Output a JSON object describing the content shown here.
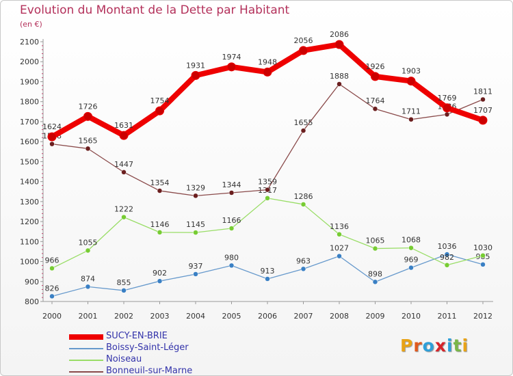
{
  "title": "Evolution du Montant de la Dette par Habitant",
  "unit": "(en €)",
  "logo": {
    "text": "Proxiti",
    "colors": [
      "#e8a317",
      "#e05a1f",
      "#2e9fd8",
      "#d6242a",
      "#2e9fd8",
      "#7ab648",
      "#e8a317"
    ]
  },
  "chart_data": {
    "type": "line",
    "title": "Evolution du Montant de la Dette par Habitant",
    "ylabel": "(en €)",
    "xlabel": "",
    "ylim": [
      800,
      2100
    ],
    "yticks": [
      800,
      900,
      1000,
      1100,
      1200,
      1300,
      1400,
      1500,
      1600,
      1700,
      1800,
      1900,
      2000,
      2100
    ],
    "categories": [
      "2000",
      "2001",
      "2002",
      "2003",
      "2004",
      "2005",
      "2006",
      "2007",
      "2008",
      "2009",
      "2010",
      "2011",
      "2012"
    ],
    "grid": false,
    "legend": "bottom-left",
    "series": [
      {
        "name": "SUCY-EN-BRIE",
        "color": "#ee0000",
        "point_color": "#cc0000",
        "values": [
          1624,
          1726,
          1631,
          1754,
          1931,
          1974,
          1948,
          2056,
          2086,
          1926,
          1903,
          1769,
          1707
        ]
      },
      {
        "name": "Boissy-Saint-Léger",
        "color": "#6699cc",
        "point_color": "#3a80c4",
        "values": [
          826,
          874,
          855,
          902,
          937,
          980,
          913,
          963,
          1027,
          898,
          969,
          1036,
          985
        ]
      },
      {
        "name": "Noiseau",
        "color": "#99dd66",
        "point_color": "#77cc33",
        "values": [
          966,
          1055,
          1222,
          1146,
          1145,
          1166,
          1317,
          1286,
          1136,
          1065,
          1068,
          982,
          1030
        ]
      },
      {
        "name": "Bonneuil-sur-Marne",
        "color": "#8a4a4a",
        "point_color": "#6b1f1f",
        "values": [
          1588,
          1565,
          1447,
          1354,
          1329,
          1344,
          1359,
          1655,
          1888,
          1764,
          1711,
          1736,
          1811
        ]
      }
    ]
  }
}
